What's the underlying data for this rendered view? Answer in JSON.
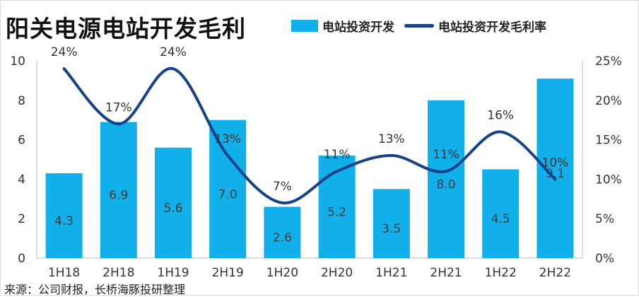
{
  "title": "阳关电源电站开发毛利",
  "legend": {
    "bar_label": "电站投资开发",
    "line_label": "电站投资开发毛利率"
  },
  "footnote": "来源：公司财报，长桥海豚投研整理",
  "colors": {
    "bar": "#12b0ea",
    "line": "#16428c"
  },
  "chart_data": {
    "type": "bar",
    "categories": [
      "1H18",
      "2H18",
      "1H19",
      "2H19",
      "1H20",
      "2H20",
      "1H21",
      "2H21",
      "1H22",
      "2H22"
    ],
    "series": [
      {
        "name": "电站投资开发",
        "type": "bar",
        "axis": "left",
        "values": [
          4.3,
          6.9,
          5.6,
          7.0,
          2.6,
          5.2,
          3.5,
          8.0,
          4.5,
          9.1
        ],
        "labels": [
          "4.3",
          "6.9",
          "5.6",
          "7.0",
          "2.6",
          "5.2",
          "3.5",
          "8.0",
          "4.5",
          "9.1"
        ]
      },
      {
        "name": "电站投资开发毛利率",
        "type": "line",
        "axis": "right",
        "values": [
          24,
          17,
          24,
          13,
          7,
          11,
          13,
          11,
          16,
          10
        ],
        "labels": [
          "24%",
          "17%",
          "24%",
          "13%",
          "7%",
          "11%",
          "13%",
          "11%",
          "16%",
          "10%"
        ]
      }
    ],
    "y_left": {
      "ticks": [
        "0",
        "2",
        "4",
        "6",
        "8",
        "10"
      ],
      "range": [
        0,
        10
      ]
    },
    "y_right": {
      "ticks": [
        "0%",
        "5%",
        "10%",
        "15%",
        "20%",
        "25%"
      ],
      "range": [
        0,
        25
      ]
    },
    "grid": false,
    "legend_position": "top"
  }
}
